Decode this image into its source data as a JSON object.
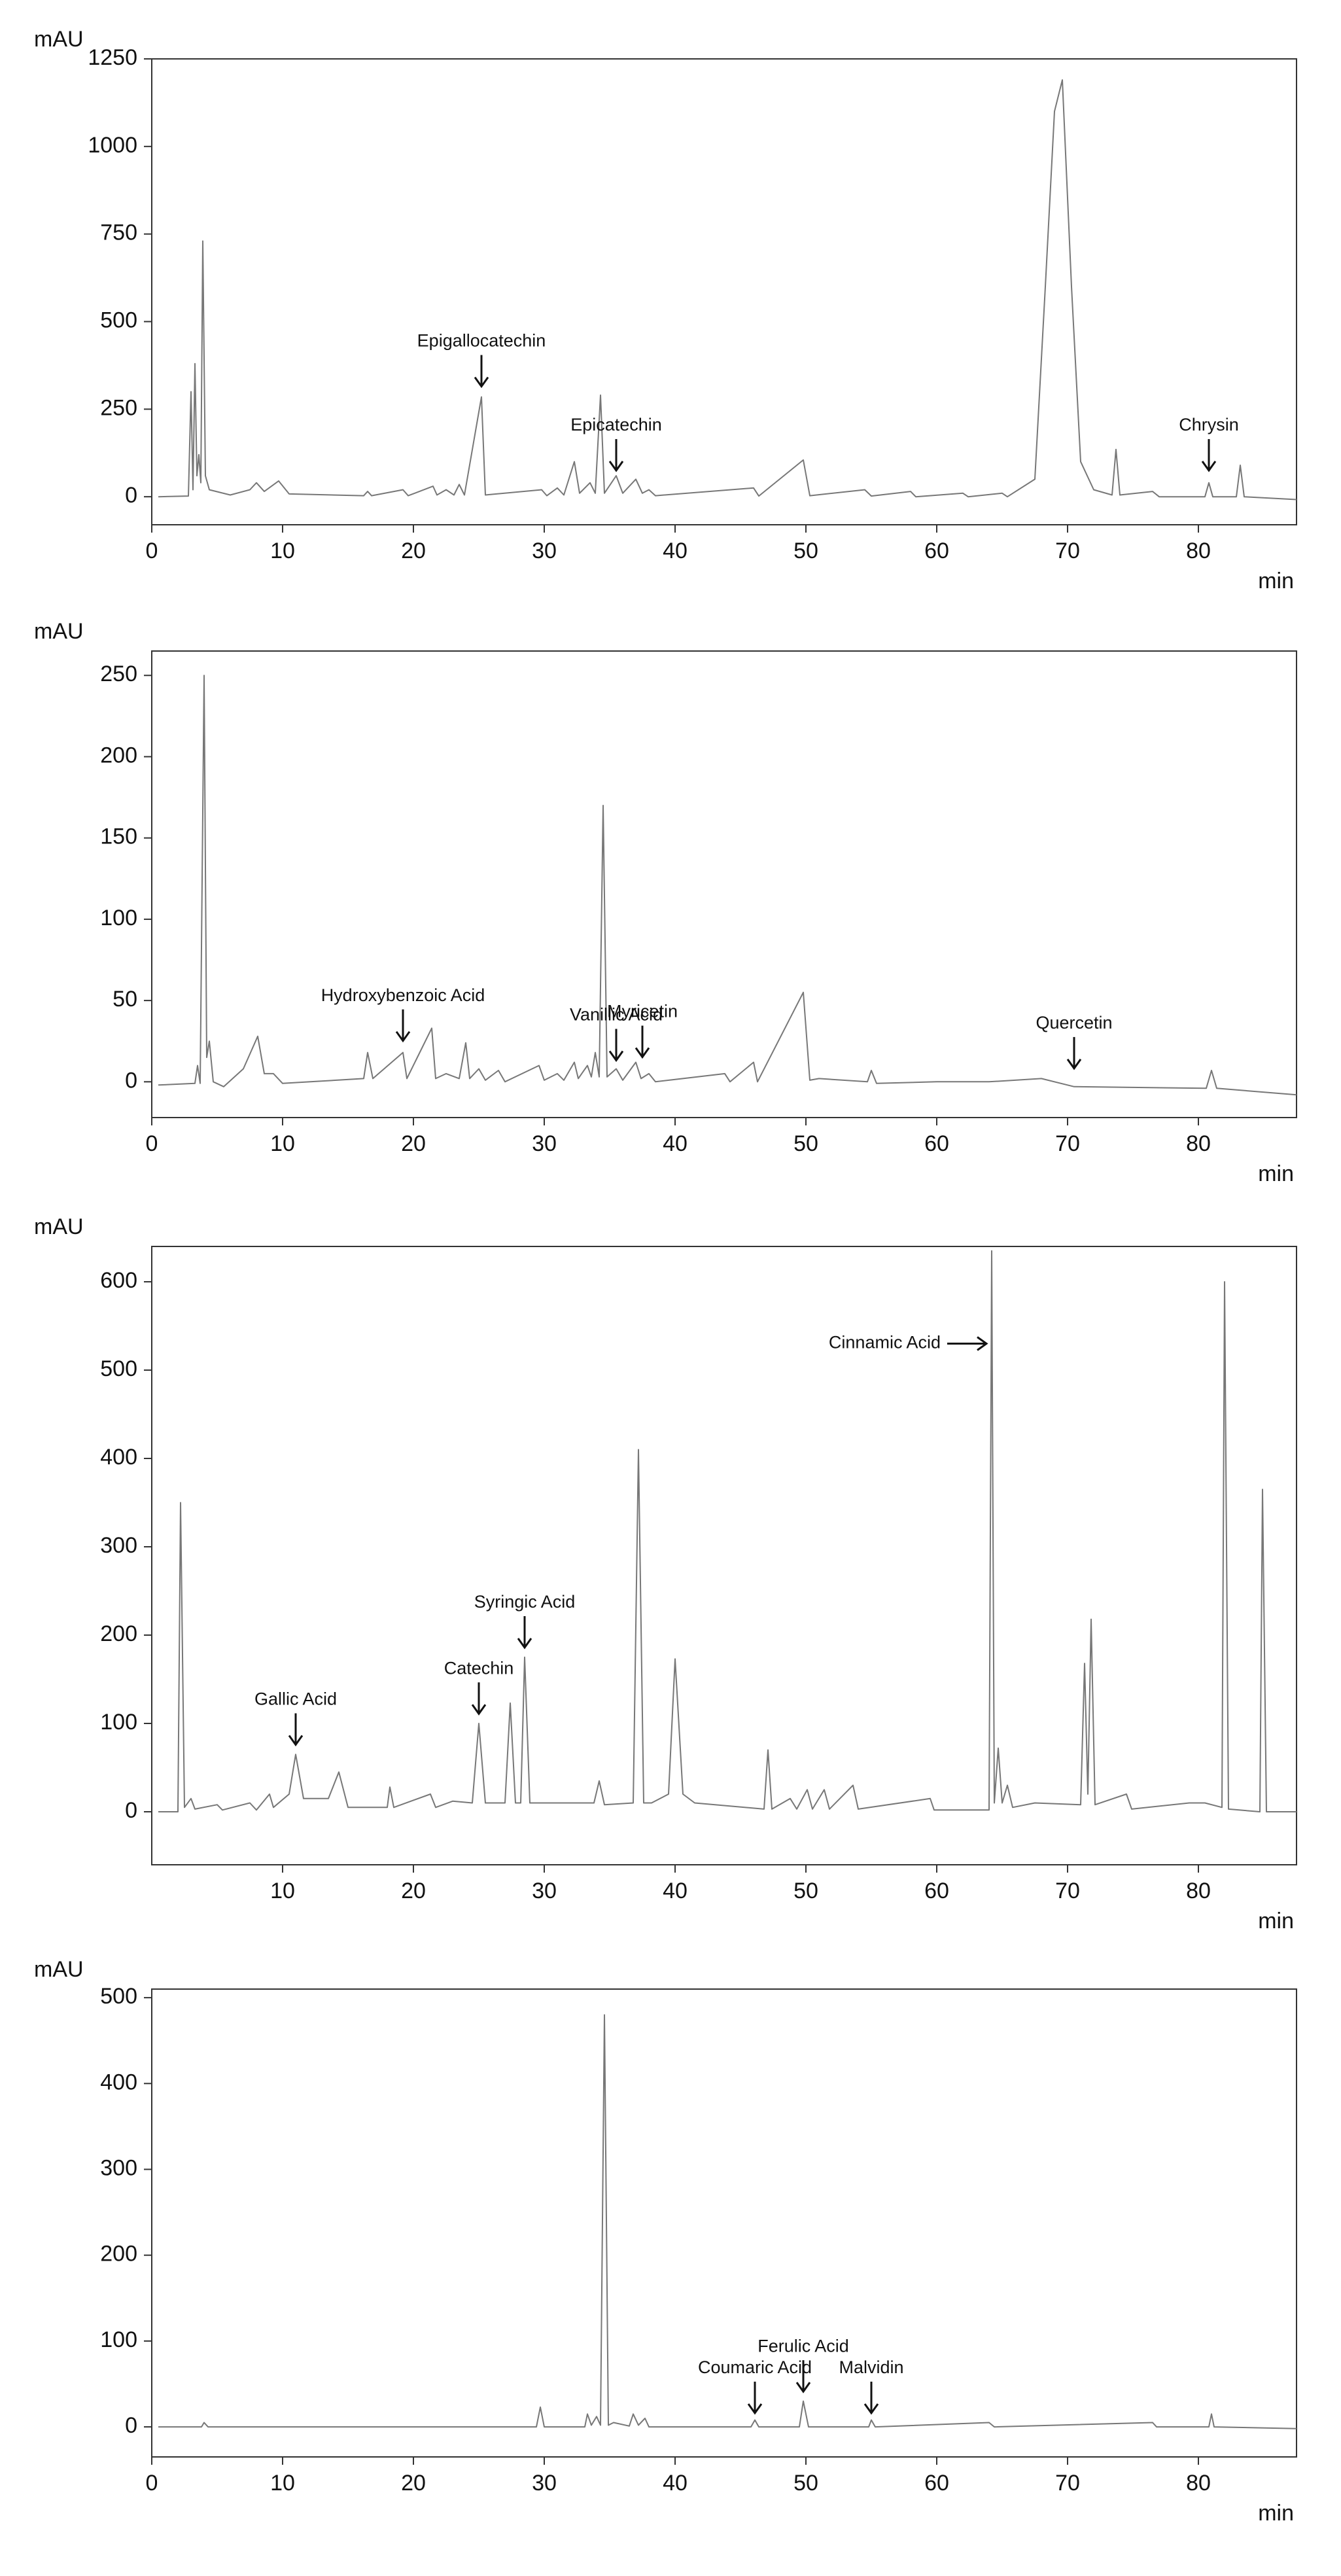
{
  "chart_data": [
    {
      "type": "line",
      "y_label": "mAU",
      "x_label": "min",
      "color": "#777777",
      "xlim": [
        0,
        87.5
      ],
      "ylim": [
        -80,
        1250
      ],
      "xticks": [
        0,
        10,
        20,
        30,
        40,
        50,
        60,
        70,
        80
      ],
      "yticks": [
        0,
        250,
        500,
        750,
        1000,
        1250
      ],
      "x": [
        0.5,
        2.8,
        3.0,
        3.15,
        3.3,
        3.45,
        3.6,
        3.75,
        3.9,
        4.1,
        4.4,
        6,
        7.5,
        8,
        8.6,
        9.7,
        10.5,
        16.2,
        16.5,
        16.8,
        19.2,
        19.6,
        21.5,
        21.8,
        22.5,
        23.1,
        23.5,
        23.9,
        25.2,
        25.5,
        29.8,
        30.2,
        31,
        31.5,
        32.3,
        32.7,
        33.5,
        33.9,
        34.3,
        34.6,
        35.5,
        36,
        37,
        37.5,
        38,
        38.5,
        46,
        46.4,
        49.8,
        50.3,
        54.5,
        55,
        58,
        58.4,
        62,
        62.4,
        65,
        65.4,
        67.5,
        68.3,
        69,
        69.6,
        70.3,
        71,
        72,
        73.4,
        73.7,
        74,
        76.5,
        77,
        80.5,
        80.8,
        81.1,
        82.9,
        83.2,
        83.5,
        87.5
      ],
      "values": [
        0,
        2,
        300,
        20,
        380,
        60,
        120,
        40,
        730,
        60,
        20,
        5,
        20,
        40,
        15,
        45,
        8,
        3,
        15,
        3,
        20,
        3,
        30,
        5,
        20,
        5,
        35,
        5,
        285,
        5,
        20,
        3,
        25,
        5,
        100,
        10,
        40,
        10,
        290,
        10,
        60,
        10,
        50,
        10,
        20,
        3,
        25,
        2,
        105,
        3,
        20,
        2,
        15,
        0,
        10,
        0,
        10,
        0,
        50,
        600,
        1100,
        1190,
        600,
        100,
        20,
        5,
        135,
        5,
        15,
        0,
        0,
        40,
        0,
        0,
        90,
        0,
        -8
      ],
      "annotations": [
        {
          "text": "Epigallocatechin",
          "x": 25.2,
          "y": 300
        },
        {
          "text": "Epicatechin",
          "x": 35.5,
          "y": 60
        },
        {
          "text": "Chrysin",
          "x": 80.8,
          "y": 60
        }
      ]
    },
    {
      "type": "line",
      "y_label": "mAU",
      "x_label": "min",
      "color": "#777777",
      "xlim": [
        0,
        87.5
      ],
      "ylim": [
        -22,
        265
      ],
      "xticks": [
        0,
        10,
        20,
        30,
        40,
        50,
        60,
        70,
        80
      ],
      "yticks": [
        0,
        50,
        100,
        150,
        200,
        250
      ],
      "x": [
        0.5,
        3.3,
        3.5,
        3.7,
        4.0,
        4.2,
        4.4,
        4.7,
        5.5,
        7,
        8.1,
        8.6,
        9.3,
        10,
        16.2,
        16.5,
        16.9,
        19.2,
        19.5,
        21.4,
        21.7,
        22.5,
        23.5,
        24,
        24.3,
        25,
        25.5,
        26.5,
        27,
        29.6,
        30,
        31,
        31.5,
        32.3,
        32.6,
        33.3,
        33.6,
        33.9,
        34.2,
        34.5,
        34.8,
        35.5,
        36,
        37,
        37.4,
        38,
        38.5,
        43.8,
        44.2,
        46,
        46.3,
        49.8,
        50.3,
        51,
        54.7,
        55,
        55.4,
        60,
        64,
        68,
        70.5,
        80.6,
        81,
        81.4,
        87.5
      ],
      "values": [
        -2,
        -1,
        10,
        -1,
        250,
        15,
        25,
        0,
        -3,
        8,
        28,
        5,
        5,
        -1,
        2,
        18,
        2,
        18,
        2,
        33,
        2,
        5,
        2,
        24,
        2,
        8,
        1,
        7,
        0,
        10,
        1,
        5,
        1,
        12,
        2,
        10,
        3,
        18,
        3,
        170,
        3,
        8,
        1,
        12,
        2,
        5,
        0,
        5,
        0,
        12,
        0,
        55,
        1,
        2,
        0,
        7,
        -1,
        0,
        0,
        2,
        -3,
        -4,
        7,
        -4,
        -8
      ],
      "annotations": [
        {
          "text": "Hydroxybenzoic Acid",
          "x": 19.2,
          "y": 22
        },
        {
          "text": "Vanillic Acid",
          "x": 35.5,
          "y": 10
        },
        {
          "text": "Myricetin",
          "x": 37.5,
          "y": 12
        },
        {
          "text": "Quercetin",
          "x": 70.5,
          "y": 5
        }
      ]
    },
    {
      "type": "line",
      "y_label": "mAU",
      "x_label": "min",
      "color": "#777777",
      "xlim": [
        0,
        87.5
      ],
      "ylim": [
        -60,
        640
      ],
      "xticks": [
        10,
        20,
        30,
        40,
        50,
        60,
        70,
        80
      ],
      "yticks": [
        0,
        100,
        200,
        300,
        400,
        500,
        600
      ],
      "x": [
        0.5,
        2,
        2.2,
        2.5,
        3,
        3.3,
        5,
        5.4,
        7.5,
        8,
        9,
        9.3,
        10.5,
        11,
        11.6,
        13.5,
        14.3,
        15,
        18,
        18.2,
        18.5,
        21.3,
        21.7,
        23,
        24.5,
        25,
        25.5,
        27,
        27.4,
        27.8,
        28.2,
        28.5,
        28.9,
        32.3,
        33.8,
        34.2,
        34.6,
        36.8,
        37.2,
        37.6,
        38.2,
        39.5,
        40,
        40.6,
        41.5,
        46.8,
        47.1,
        47.4,
        48.8,
        49.3,
        50.1,
        50.5,
        51.4,
        51.8,
        53.6,
        54,
        59.5,
        59.8,
        64,
        64.2,
        64.4,
        64.7,
        65,
        65.4,
        65.8,
        67.5,
        71,
        71.3,
        71.55,
        71.8,
        72.1,
        74.5,
        74.9,
        79.3,
        80.5,
        81.8,
        82,
        82.3,
        84.7,
        84.9,
        85.2,
        87.5
      ],
      "values": [
        0,
        0,
        350,
        5,
        15,
        3,
        8,
        2,
        10,
        2,
        20,
        5,
        20,
        65,
        15,
        15,
        45,
        5,
        5,
        28,
        5,
        20,
        5,
        12,
        10,
        100,
        10,
        10,
        123,
        10,
        10,
        175,
        10,
        10,
        10,
        35,
        8,
        10,
        410,
        10,
        10,
        20,
        173,
        20,
        10,
        3,
        70,
        3,
        15,
        3,
        25,
        3,
        25,
        3,
        30,
        3,
        15,
        2,
        2,
        635,
        10,
        72,
        10,
        30,
        5,
        10,
        8,
        168,
        20,
        218,
        8,
        20,
        3,
        10,
        10,
        5,
        600,
        3,
        0,
        365,
        0,
        0
      ],
      "annotations": [
        {
          "text": "Gallic Acid",
          "x": 11,
          "y": 70
        },
        {
          "text": "Catechin",
          "x": 25,
          "y": 105
        },
        {
          "text": "Syringic Acid",
          "x": 28.5,
          "y": 180
        },
        {
          "text": "Cinnamic Acid",
          "x": 63.8,
          "y": 530,
          "arrow": "right"
        }
      ]
    },
    {
      "type": "line",
      "y_label": "mAU",
      "x_label": "min",
      "color": "#777777",
      "xlim": [
        0,
        87.5
      ],
      "ylim": [
        -35,
        510
      ],
      "xticks": [
        0,
        10,
        20,
        30,
        40,
        50,
        60,
        70,
        80
      ],
      "yticks": [
        0,
        100,
        200,
        300,
        400,
        500
      ],
      "x": [
        0.5,
        3.8,
        4,
        4.3,
        29.4,
        29.7,
        30,
        33.1,
        33.3,
        33.6,
        34,
        34.3,
        34.6,
        34.9,
        35.3,
        36.5,
        36.8,
        37.2,
        37.7,
        38,
        45.8,
        46.1,
        46.4,
        49.5,
        49.8,
        50.2,
        54.8,
        55,
        55.3,
        64,
        64.4,
        76.5,
        76.8,
        80.8,
        81,
        81.2,
        87.5
      ],
      "values": [
        0,
        0,
        5,
        0,
        0,
        23,
        0,
        0,
        15,
        2,
        12,
        2,
        480,
        2,
        5,
        1,
        15,
        2,
        10,
        0,
        0,
        8,
        0,
        0,
        30,
        0,
        0,
        8,
        0,
        5,
        0,
        5,
        0,
        0,
        15,
        0,
        -2
      ],
      "annotations": [
        {
          "text": "Coumaric Acid",
          "x": 46.1,
          "y": 10
        },
        {
          "text": "Ferulic Acid",
          "x": 49.8,
          "y": 35
        },
        {
          "text": "Malvidin",
          "x": 55,
          "y": 10
        }
      ]
    }
  ]
}
